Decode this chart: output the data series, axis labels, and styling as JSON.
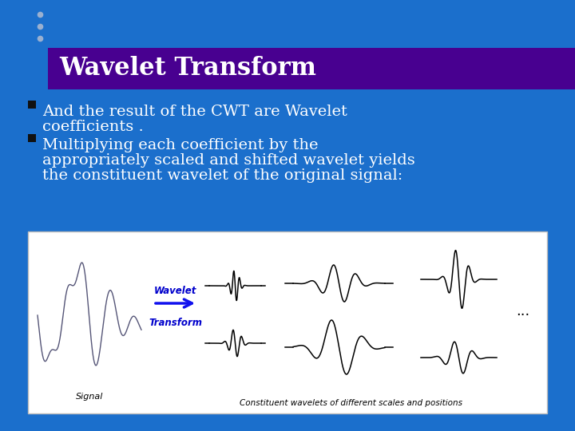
{
  "bg_color": "#1B6FCC",
  "title_text": "Wavelet Transform",
  "title_bg": "#480090",
  "title_text_color": "#FFFFFF",
  "bullet1_line1": "And the result of the CWT are Wavelet",
  "bullet1_line2": "coefficients .",
  "bullet2_line1": "Multiplying each coefficient by the",
  "bullet2_line2": "appropriately scaled and shifted wavelet yields",
  "bullet2_line3": "the constituent wavelet of the original signal:",
  "bullet_color": "#FFFFFF",
  "dots_color": "#9AB0D0",
  "image_box_color": "#FFFFFF",
  "image_box_border": "#BBBBBB",
  "wavelet_label_color": "#0000CC",
  "transform_label_color": "#0000CC",
  "arrow_color": "#1111EE",
  "signal_label": "Signal",
  "constituent_label": "Constituent wavelets of different scales and positions",
  "fig_w": 7.2,
  "fig_h": 5.4,
  "dpi": 100
}
